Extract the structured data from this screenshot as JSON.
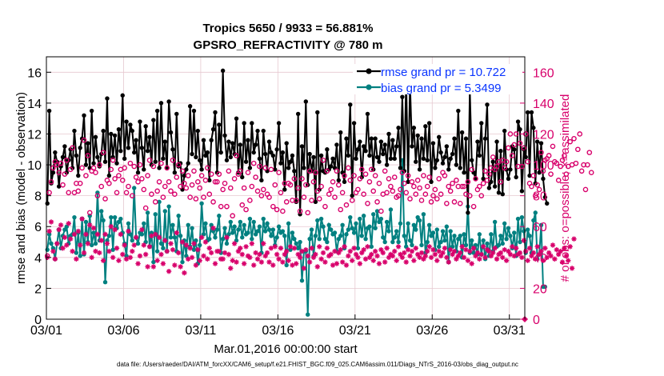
{
  "chart_data": {
    "type": "line",
    "title": "Tropics 5650 / 9933 = 56.881%",
    "subtitle": "GPSRO_REFRACTIVITY @ 780 m",
    "xlabel": "Mar.01,2016 00:00:00 start",
    "ylabel": "rmse and bias (model - observation)",
    "ylabel_right": "# of obs: o=possible; ×=assimilated",
    "x_tick_labels": [
      "03/01",
      "03/06",
      "03/11",
      "03/16",
      "03/21",
      "03/26",
      "03/31"
    ],
    "x_tick_days": [
      0,
      5,
      10,
      15,
      20,
      25,
      30
    ],
    "xlim_days": [
      0,
      31
    ],
    "ylim": [
      0,
      17
    ],
    "yticks": [
      0,
      2,
      4,
      6,
      8,
      10,
      12,
      14,
      16
    ],
    "ylim_right": [
      0,
      170
    ],
    "yticks_right": [
      0,
      20,
      40,
      60,
      80,
      100,
      120,
      140,
      160
    ],
    "legend": [
      "rmse grand pr = 10.722",
      "bias grand pr = 5.3499"
    ],
    "footnote": "data file: /Users/raeder/DAI/ATM_forcXX/CAM6_setup/f.e21.FHIST_BGC.f09_025.CAM6assim.011/Diags_NTrS_2016-03/obs_diag_output.nc",
    "colors": {
      "rmse": "#000000",
      "bias": "#008080",
      "obs": "#d8006b",
      "grid": "#e6c8d0",
      "legend_text": "#0a35ff"
    },
    "series": [
      {
        "name": "rmse",
        "axis": "left",
        "values": [
          7.5,
          13.5,
          8.8,
          9.5,
          10.8,
          10.2,
          8.6,
          9.9,
          10.5,
          11.2,
          9.5,
          10.3,
          11.0,
          9.8,
          12.2,
          10.6,
          9.3,
          11.1,
          11.7,
          13.2,
          10.0,
          11.4,
          9.8,
          13.5,
          10.1,
          11.8,
          10.5,
          9.9,
          10.7,
          12.2,
          10.2,
          14.3,
          9.3,
          12.0,
          10.5,
          11.9,
          10.1,
          12.3,
          10.9,
          14.5,
          10.4,
          12.8,
          11.1,
          12.6,
          12.2,
          10.8,
          11.6,
          9.5,
          12.8,
          11.1,
          9.7,
          12.5,
          10.9,
          11.8,
          10.0,
          12.9,
          10.2,
          13.5,
          9.8,
          14.0,
          10.4,
          11.5,
          9.8,
          14.1,
          12.1,
          11.0,
          9.5,
          13.3,
          9.9,
          10.1,
          8.4,
          9.3,
          9.7,
          10.1,
          13.8,
          10.7,
          13.5,
          10.5,
          12.2,
          10.3,
          9.7,
          11.6,
          10.6,
          10.8,
          9.0,
          11.6,
          12.3,
          13.4,
          9.5,
          12.6,
          10.8,
          16.1,
          11.9,
          10.3,
          11.5,
          10.5,
          11.4,
          10.7,
          13.0,
          9.5,
          11.3,
          9.2,
          12.7,
          10.2,
          11.6,
          9.8,
          12.7,
          10.8,
          11.3,
          12.2,
          10.4,
          9.0,
          12.2,
          10.7,
          9.6,
          11.5,
          10.8,
          10.6,
          9.7,
          11.0,
          12.7,
          10.1,
          10.8,
          8.4,
          11.4,
          9.8,
          10.2,
          10.6,
          9.6,
          7.6,
          13.3,
          6.8,
          11.2,
          9.8,
          14.1,
          8.7,
          10.7,
          9.6,
          10.5,
          7.6,
          13.4,
          8.4,
          10.6,
          9.6,
          9.5,
          11.0,
          9.7,
          9.9,
          10.4,
          9.8,
          11.3,
          9.0,
          12.1,
          9.5,
          8.9,
          11.7,
          10.6,
          13.9,
          8.0,
          12.7,
          10.4,
          11.0,
          11.5,
          9.2,
          11.2,
          10.9,
          13.3,
          10.6,
          11.7,
          9.7,
          11.7,
          10.5,
          10.2,
          11.5,
          10.7,
          11.3,
          10.0,
          12.0,
          10.4,
          11.6,
          10.4,
          11.2,
          12.4,
          9.8,
          14.4,
          9.6,
          15.6,
          8.9,
          15.3,
          11.2,
          12.4,
          10.2,
          11.9,
          9.7,
          11.7,
          10.4,
          12.5,
          10.3,
          12.7,
          8.9,
          11.4,
          9.8,
          10.3,
          11.8,
          10.8,
          10.1,
          10.5,
          11.2,
          9.7,
          10.4,
          10.7,
          11.7,
          10.0,
          13.5,
          9.8,
          12.1,
          9.5,
          11.7,
          6.9,
          14.9,
          10.3,
          9.5,
          9.1,
          11.5,
          10.6,
          12.7,
          9.1,
          11.7,
          13.9,
          8.5,
          8.9,
          10.2,
          8.6,
          11.5,
          8.2,
          10.9,
          8.1,
          12.2,
          9.7,
          9.1,
          9.7,
          11.2,
          11.0,
          9.2,
          12.8,
          12.3,
          8.3,
          11.0,
          10.5,
          13.4,
          9.3,
          13.4,
          12.4,
          8.8,
          11.5,
          9.5,
          11.4,
          9.1,
          7.9,
          7.5
        ]
      },
      {
        "name": "bias",
        "axis": "left",
        "values": [
          4.5,
          5.5,
          4.9,
          4.6,
          3.9,
          4.9,
          5.8,
          4.6,
          5.4,
          5.8,
          6.0,
          4.9,
          5.4,
          5.5,
          6.6,
          4.3,
          5.6,
          4.1,
          6.5,
          4.2,
          6.3,
          5.0,
          6.7,
          4.8,
          5.6,
          4.9,
          8.2,
          5.1,
          7.0,
          6.4,
          2.4,
          5.1,
          5.4,
          6.6,
          4.5,
          6.6,
          5.9,
          6.3,
          6.5,
          5.6,
          4.9,
          4.1,
          6.2,
          5.5,
          5.1,
          8.5,
          5.3,
          4.9,
          5.6,
          5.5,
          6.2,
          5.0,
          6.9,
          4.7,
          5.6,
          3.7,
          6.8,
          4.4,
          7.6,
          4.9,
          4.6,
          7.0,
          4.4,
          7.3,
          5.3,
          6.1,
          5.3,
          4.4,
          6.7,
          5.4,
          3.7,
          5.1,
          4.1,
          6.1,
          4.7,
          5.9,
          4.5,
          5.1,
          3.6,
          4.8,
          7.5,
          5.5,
          6.2,
          5.1,
          5.2,
          6.1,
          5.7,
          5.3,
          5.8,
          6.7,
          4.3,
          5.2,
          5.9,
          4.9,
          5.5,
          6.3,
          5.6,
          6.0,
          5.1,
          5.8,
          6.3,
          5.3,
          6.1,
          5.5,
          5.6,
          6.5,
          5.2,
          6.3,
          5.5,
          5.7,
          6.0,
          4.3,
          6.5,
          5.7,
          6.2,
          5.8,
          5.4,
          5.8,
          4.8,
          5.3,
          6.0,
          5.6,
          5.7,
          5.4,
          3.5,
          6.2,
          4.5,
          5.6,
          5.2,
          4.9,
          4.6,
          5.0,
          2.5,
          4.4,
          4.4,
          0.3,
          5.2,
          5.8,
          4.1,
          5.4,
          6.4,
          5.2,
          6.5,
          6.0,
          5.2,
          5.0,
          6.1,
          5.8,
          5.5,
          5.6,
          4.4,
          5.2,
          5.4,
          6.1,
          4.6,
          5.5,
          5.8,
          6.6,
          5.9,
          5.6,
          6.2,
          4.6,
          6.5,
          5.4,
          6.7,
          5.2,
          5.9,
          6.0,
          4.7,
          6.8,
          5.9,
          7.0,
          6.3,
          6.5,
          5.3,
          5.0,
          6.3,
          5.7,
          7.1,
          5.0,
          5.3,
          5.7,
          5.0,
          6.2,
          10.3,
          5.4,
          4.7,
          6.2,
          5.1,
          4.8,
          6.1,
          5.8,
          6.6,
          6.4,
          4.8,
          6.8,
          4.3,
          5.0,
          6.1,
          5.4,
          5.6,
          4.5,
          5.8,
          4.7,
          5.0,
          5.7,
          5.1,
          6.0,
          3.7,
          5.7,
          4.7,
          5.4,
          4.4,
          5.2,
          5.4,
          4.0,
          5.5,
          4.8,
          7.3,
          4.3,
          5.1,
          4.3,
          4.8,
          4.2,
          5.5,
          4.2,
          5.1,
          3.9,
          4.9,
          4.1,
          5.5,
          4.4,
          6.3,
          4.7,
          4.8,
          5.4,
          4.9,
          6.2,
          5.2,
          5.9,
          5.4,
          4.6,
          5.6,
          4.1,
          6.5,
          5.0,
          6.6,
          5.7,
          4.3,
          5.8,
          5.4,
          4.3,
          6.4,
          6.9,
          3.9,
          4.2,
          6.1,
          2.1,
          2.1
        ]
      },
      {
        "name": "possible",
        "axis": "right",
        "marker": "circle",
        "values": [
          41,
          82,
          89,
          98,
          102,
          100,
          95,
          101,
          87,
          94,
          103,
          82,
          97,
          111,
          82,
          88,
          83,
          88,
          98,
          116,
          93,
          106,
          69,
          96,
          98,
          95,
          80,
          100,
          86,
          108,
          78,
          90,
          88,
          97,
          103,
          91,
          82,
          93,
          97,
          90,
          98,
          82,
          86,
          101,
          80,
          99,
          92,
          89,
          100,
          91,
          84,
          72,
          93,
          103,
          81,
          99,
          76,
          83,
          89,
          101,
          79,
          86,
          98,
          89,
          83,
          103,
          81,
          92,
          100,
          86,
          96,
          88,
          85,
          93,
          79,
          87,
          96,
          78,
          89,
          85,
          93,
          79,
          90,
          98,
          81,
          94,
          76,
          89,
          89,
          94,
          73,
          84,
          88,
          73,
          96,
          85,
          67,
          91,
          106,
          94,
          96,
          74,
          85,
          71,
          95,
          77,
          86,
          101,
          92,
          83,
          99,
          80,
          84,
          98,
          81,
          79,
          97,
          73,
          87,
          71,
          95,
          82,
          70,
          88,
          76,
          88,
          87,
          77,
          91,
          77,
          85,
          70,
          91,
          79,
          87,
          69,
          96,
          77,
          89,
          95,
          83,
          78,
          86,
          103,
          73,
          96,
          81,
          84,
          89,
          79,
          96,
          87,
          71,
          82,
          93,
          74,
          98,
          90,
          77,
          93,
          82,
          84,
          91,
          97,
          81,
          94,
          75,
          89,
          97,
          83,
          93,
          76,
          88,
          70,
          81,
          96,
          82,
          91,
          86,
          83,
          92,
          79,
          80,
          84,
          95,
          88,
          82,
          93,
          78,
          89,
          86,
          81,
          90,
          85,
          77,
          93,
          81,
          86,
          92,
          76,
          80,
          84,
          78,
          91,
          81,
          95,
          93,
          75,
          86,
          83,
          88,
          76,
          90,
          86,
          75,
          86,
          86,
          81,
          89,
          80,
          97,
          73,
          91,
          84,
          86,
          80,
          88,
          96,
          90,
          94,
          98,
          105,
          97,
          99,
          102,
          89,
          103,
          98,
          102,
          111,
          120,
          106,
          113,
          120,
          99,
          114,
          99,
          111,
          120,
          102,
          88,
          86,
          93,
          80,
          87,
          84,
          108,
          96,
          103,
          104,
          106,
          94,
          112,
          102,
          101,
          90,
          99,
          103,
          106,
          94,
          99,
          115,
          100,
          117,
          101,
          110,
          120,
          96,
          100,
          84,
          100,
          108,
          95
        ]
      },
      {
        "name": "assimilated",
        "axis": "right",
        "marker": "asterisk",
        "values": [
          40,
          57,
          63,
          44,
          39,
          49,
          58,
          61,
          46,
          53,
          48,
          62,
          52,
          44,
          55,
          39,
          57,
          48,
          65,
          43,
          55,
          49,
          61,
          40,
          59,
          44,
          55,
          43,
          51,
          38,
          55,
          49,
          44,
          60,
          40,
          58,
          46,
          38,
          55,
          42,
          48,
          39,
          57,
          40,
          44,
          48,
          53,
          36,
          41,
          58,
          48,
          42,
          34,
          47,
          54,
          34,
          55,
          38,
          53,
          42,
          36,
          51,
          44,
          31,
          49,
          45,
          35,
          56,
          43,
          34,
          50,
          30,
          48,
          39,
          46,
          40,
          49,
          35,
          45,
          38,
          53,
          41,
          50,
          39,
          46,
          43,
          59,
          36,
          44,
          44,
          39,
          39,
          43,
          53,
          42,
          33,
          38,
          49,
          37,
          44,
          46,
          42,
          36,
          47,
          41,
          40,
          49,
          35,
          43,
          39,
          42,
          37,
          49,
          41,
          43,
          37,
          46,
          35,
          47,
          42,
          39,
          46,
          37,
          42,
          44,
          38,
          47,
          35,
          46,
          36,
          42,
          40,
          44,
          33,
          45,
          41,
          37,
          46,
          40,
          42,
          34,
          47,
          39,
          43,
          37,
          46,
          41,
          42,
          35,
          44,
          36,
          43,
          45,
          37,
          47,
          35,
          41,
          44,
          38,
          46,
          42,
          40,
          36,
          43,
          45,
          39,
          47,
          40,
          42,
          38,
          44,
          41,
          36,
          45,
          43,
          37,
          46,
          40,
          42,
          41,
          44,
          38,
          47,
          42,
          40,
          43,
          37,
          45,
          41,
          44,
          38,
          46,
          42,
          40,
          43,
          39,
          41,
          44,
          47,
          40,
          45,
          42,
          38,
          44,
          41,
          43,
          46,
          40,
          37,
          45,
          42,
          44,
          39,
          41,
          43,
          47,
          40,
          45,
          38,
          44,
          36,
          46,
          41,
          43,
          39,
          42,
          47,
          40,
          45,
          44,
          41,
          43,
          46,
          39,
          42,
          43,
          40,
          45,
          38,
          44,
          42,
          47,
          41,
          46,
          42,
          43,
          40,
          51,
          44,
          38,
          46,
          41,
          43,
          39,
          47,
          42,
          44,
          38,
          46,
          40,
          43,
          41,
          48,
          39,
          45,
          42,
          44,
          37,
          46,
          41,
          38,
          47,
          33,
          52
        ]
      }
    ]
  }
}
